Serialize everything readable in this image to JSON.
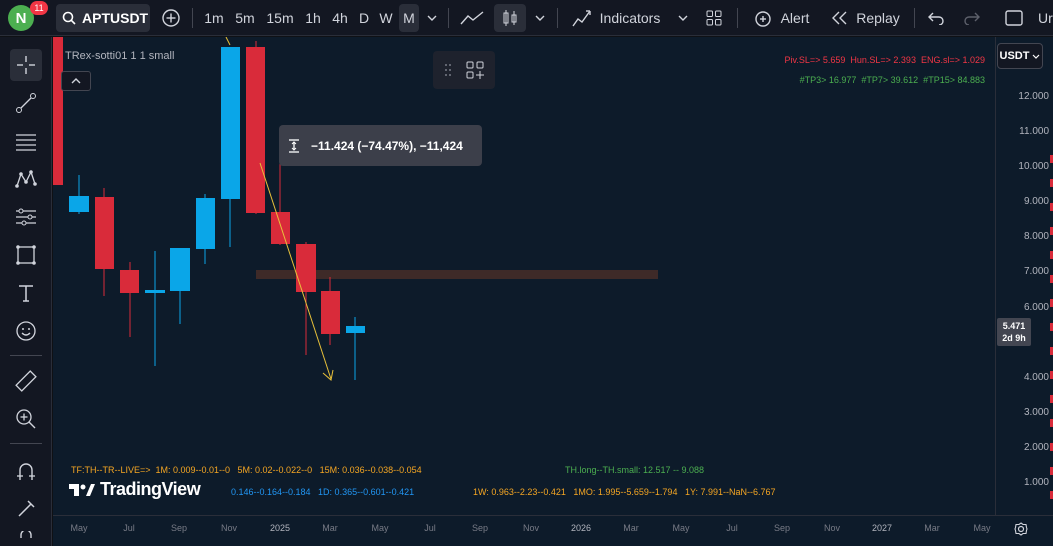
{
  "header": {
    "avatar_letter": "N",
    "notifications": "11",
    "symbol": "APTUSDT",
    "intervals": [
      "1m",
      "5m",
      "15m",
      "1h",
      "4h",
      "D",
      "W",
      "M"
    ],
    "active_interval": "M",
    "indicators_label": "Indicators",
    "alert_label": "Alert",
    "replay_label": "Replay",
    "cut_label": "Ur"
  },
  "chart": {
    "study_label": "TRex-sotti01 1 1 small",
    "currency": "USDT",
    "tooltip": "−11.424 (−74.47%), −11,424",
    "current_price": "5.471",
    "countdown": "2d 9h",
    "info_line1": "Piv.SL=> 5.659  Hun.SL=> 2.393  ENG.sl=> 1.029",
    "info_line2": "#TP3> 16.977  #TP7> 39.612  #TP15> 84.883",
    "bottom_left": "TF:TH--TR--LIVE=>  1M: 0.009--0.01--0   5M: 0.02--0.022--0   15M: 0.036--0.038--0.054",
    "bottom_right": "TH.long--TH.small: 12.517 -- 9.088",
    "bottom_line2a": "0.146--0.164--0.184   1D: 0.365--0.601--0.421",
    "bottom_line2b": "1W: 0.963--2.23--0.421   1MO: 1.995--5.659--1.794   1Y: 7.991--NaN--6.767",
    "logo_text": "TradingView",
    "price_labels": [
      "12.000",
      "11.000",
      "10.000",
      "9.000",
      "8.000",
      "7.000",
      "6.000",
      "4.000",
      "3.000",
      "2.000",
      "1.000"
    ],
    "time_labels": [
      "May",
      "Jul",
      "Sep",
      "Nov",
      "2025",
      "Mar",
      "May",
      "Jul",
      "Sep",
      "Nov",
      "2026",
      "Mar",
      "May",
      "Jul",
      "Sep",
      "Nov",
      "2027",
      "Mar",
      "May"
    ],
    "colors": {
      "up": "#0aa6e8",
      "down": "#d92b3a",
      "bg": "#0d1b2a"
    }
  }
}
